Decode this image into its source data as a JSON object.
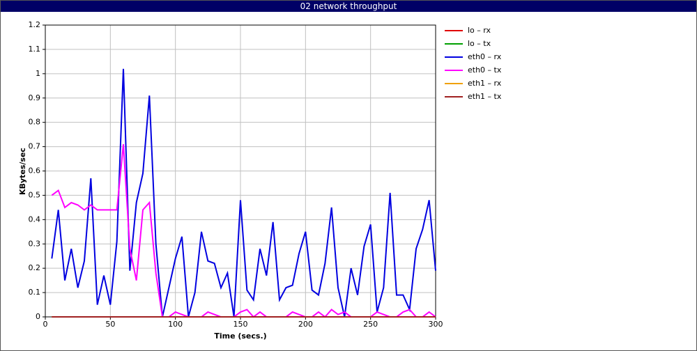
{
  "chart_data": {
    "type": "line",
    "title": "02 network throughput",
    "x_label": "Time (secs.)",
    "y_label": "KBytes/sec",
    "x": [
      5,
      10,
      15,
      20,
      25,
      30,
      35,
      40,
      45,
      50,
      55,
      60,
      65,
      70,
      75,
      80,
      85,
      90,
      95,
      100,
      105,
      110,
      115,
      120,
      125,
      130,
      135,
      140,
      145,
      150,
      155,
      160,
      165,
      170,
      175,
      180,
      185,
      190,
      195,
      200,
      205,
      210,
      215,
      220,
      225,
      230,
      235,
      240,
      245,
      250,
      255,
      260,
      265,
      270,
      275,
      280,
      285,
      290,
      295,
      300
    ],
    "xlim": [
      0,
      300
    ],
    "xticks": [
      0,
      50,
      100,
      150,
      200,
      250,
      300
    ],
    "ylim": [
      0,
      1.2
    ],
    "yticks": [
      0,
      0.1,
      0.2,
      0.3,
      0.4,
      0.5,
      0.6,
      0.7,
      0.8,
      0.9,
      1,
      1.1,
      1.2
    ],
    "grid": true,
    "series": [
      {
        "name": "lo – rx",
        "color": "#e00000",
        "values": [
          0,
          0,
          0,
          0,
          0,
          0,
          0,
          0,
          0,
          0,
          0,
          0,
          0,
          0,
          0,
          0,
          0,
          0,
          0,
          0,
          0,
          0,
          0,
          0,
          0,
          0,
          0,
          0,
          0,
          0,
          0,
          0,
          0,
          0,
          0,
          0,
          0,
          0,
          0,
          0,
          0,
          0,
          0,
          0,
          0,
          0,
          0,
          0,
          0,
          0,
          0,
          0,
          0,
          0,
          0,
          0,
          0,
          0,
          0,
          0
        ]
      },
      {
        "name": "lo – tx",
        "color": "#00a000",
        "values": [
          0,
          0,
          0,
          0,
          0,
          0,
          0,
          0,
          0,
          0,
          0,
          0,
          0,
          0,
          0,
          0,
          0,
          0,
          0,
          0,
          0,
          0,
          0,
          0,
          0,
          0,
          0,
          0,
          0,
          0,
          0,
          0,
          0,
          0,
          0,
          0,
          0,
          0,
          0,
          0,
          0,
          0,
          0,
          0,
          0,
          0,
          0,
          0,
          0,
          0,
          0,
          0,
          0,
          0,
          0,
          0,
          0,
          0,
          0,
          0
        ]
      },
      {
        "name": "eth0 – rx",
        "color": "#0000e0",
        "values": [
          0.24,
          0.44,
          0.15,
          0.28,
          0.12,
          0.23,
          0.57,
          0.05,
          0.17,
          0.05,
          0.31,
          1.02,
          0.19,
          0.47,
          0.59,
          0.91,
          0.3,
          0,
          0.12,
          0.24,
          0.33,
          0,
          0.1,
          0.35,
          0.23,
          0.22,
          0.12,
          0.18,
          0,
          0.48,
          0.11,
          0.07,
          0.28,
          0.17,
          0.39,
          0.07,
          0.12,
          0.13,
          0.26,
          0.35,
          0.11,
          0.09,
          0.22,
          0.45,
          0.12,
          0,
          0.2,
          0.09,
          0.29,
          0.38,
          0.02,
          0.12,
          0.51,
          0.09,
          0.09,
          0.03,
          0.28,
          0.36,
          0.48,
          0.19
        ]
      },
      {
        "name": "eth0 – tx",
        "color": "#ff00ff",
        "values": [
          0.5,
          0.52,
          0.45,
          0.47,
          0.46,
          0.44,
          0.46,
          0.44,
          0.44,
          0.44,
          0.44,
          0.71,
          0.28,
          0.15,
          0.44,
          0.47,
          0.18,
          0,
          0,
          0.02,
          0.01,
          0,
          0,
          0,
          0.02,
          0.01,
          0,
          0,
          0,
          0.02,
          0.03,
          0,
          0.02,
          0,
          0,
          0,
          0,
          0.02,
          0.01,
          0,
          0,
          0.02,
          0,
          0.03,
          0.01,
          0.02,
          0,
          0,
          0,
          0,
          0.02,
          0.01,
          0,
          0,
          0.02,
          0.03,
          0,
          0,
          0.02,
          0
        ]
      },
      {
        "name": "eth1 – rx",
        "color": "#f0a000",
        "values": [
          0,
          0,
          0,
          0,
          0,
          0,
          0,
          0,
          0,
          0,
          0,
          0,
          0,
          0,
          0,
          0,
          0,
          0,
          0,
          0,
          0,
          0,
          0,
          0,
          0,
          0,
          0,
          0,
          0,
          0,
          0,
          0,
          0,
          0,
          0,
          0,
          0,
          0,
          0,
          0,
          0,
          0,
          0,
          0,
          0,
          0,
          0,
          0,
          0,
          0,
          0,
          0,
          0,
          0,
          0,
          0,
          0,
          0,
          0,
          0
        ]
      },
      {
        "name": "eth1 – tx",
        "color": "#a02020",
        "values": [
          0,
          0,
          0,
          0,
          0,
          0,
          0,
          0,
          0,
          0,
          0,
          0,
          0,
          0,
          0,
          0,
          0,
          0,
          0,
          0,
          0,
          0,
          0,
          0,
          0,
          0,
          0,
          0,
          0,
          0,
          0,
          0,
          0,
          0,
          0,
          0,
          0,
          0,
          0,
          0,
          0,
          0,
          0,
          0,
          0,
          0,
          0,
          0,
          0,
          0,
          0,
          0,
          0,
          0,
          0,
          0,
          0,
          0,
          0,
          0
        ]
      }
    ]
  }
}
